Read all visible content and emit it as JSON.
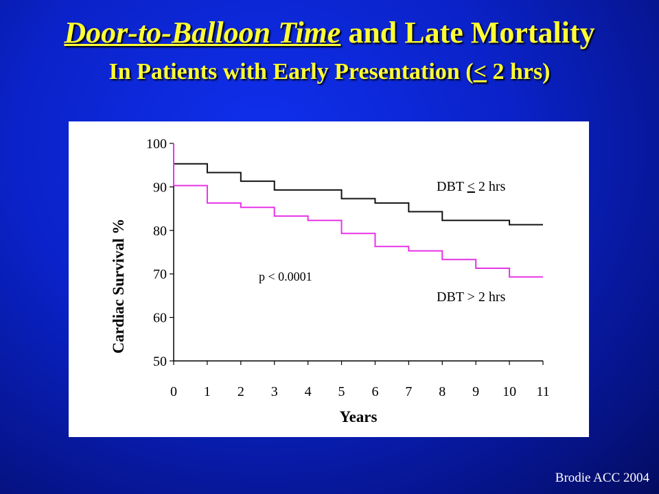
{
  "slide": {
    "title_emphasis": "Door-to-Balloon Time",
    "title_rest": " and Late Mortality",
    "subtitle_before": "In Patients with Early Presentation (",
    "subtitle_le": "<",
    "subtitle_after": " 2 hrs)",
    "credit": "Brodie ACC 2004",
    "background_color": "#0a22c8",
    "title_color": "#ffff33"
  },
  "chart_data": {
    "type": "line",
    "step": true,
    "title": "",
    "xlabel": "Years",
    "ylabel": "Cardiac Survival %",
    "xlim": [
      0,
      11
    ],
    "ylim": [
      50,
      100
    ],
    "xticks": [
      0,
      1,
      2,
      3,
      4,
      5,
      6,
      7,
      8,
      9,
      10,
      11
    ],
    "yticks": [
      50,
      60,
      70,
      80,
      90,
      100
    ],
    "grid": false,
    "annotation": "p < 0.0001",
    "series": [
      {
        "name": "DBT < 2 hrs",
        "name_prefix": "DBT ",
        "name_symbol": "<",
        "name_suffix": " 2 hrs",
        "color": "#111111",
        "x": [
          0,
          1,
          2,
          3,
          5,
          6,
          7,
          8,
          10,
          11
        ],
        "y": [
          95.3,
          93.3,
          91.3,
          89.3,
          87.3,
          86.3,
          84.3,
          82.3,
          81.3,
          81.3
        ]
      },
      {
        "name": "DBT > 2 hrs",
        "color": "#e633e6",
        "x": [
          0,
          1,
          2,
          3,
          4,
          5,
          6,
          7,
          8,
          9,
          10,
          11
        ],
        "y": [
          90.3,
          86.3,
          85.3,
          83.3,
          82.3,
          79.3,
          76.3,
          75.3,
          73.3,
          71.3,
          69.3,
          69.3
        ]
      }
    ]
  }
}
